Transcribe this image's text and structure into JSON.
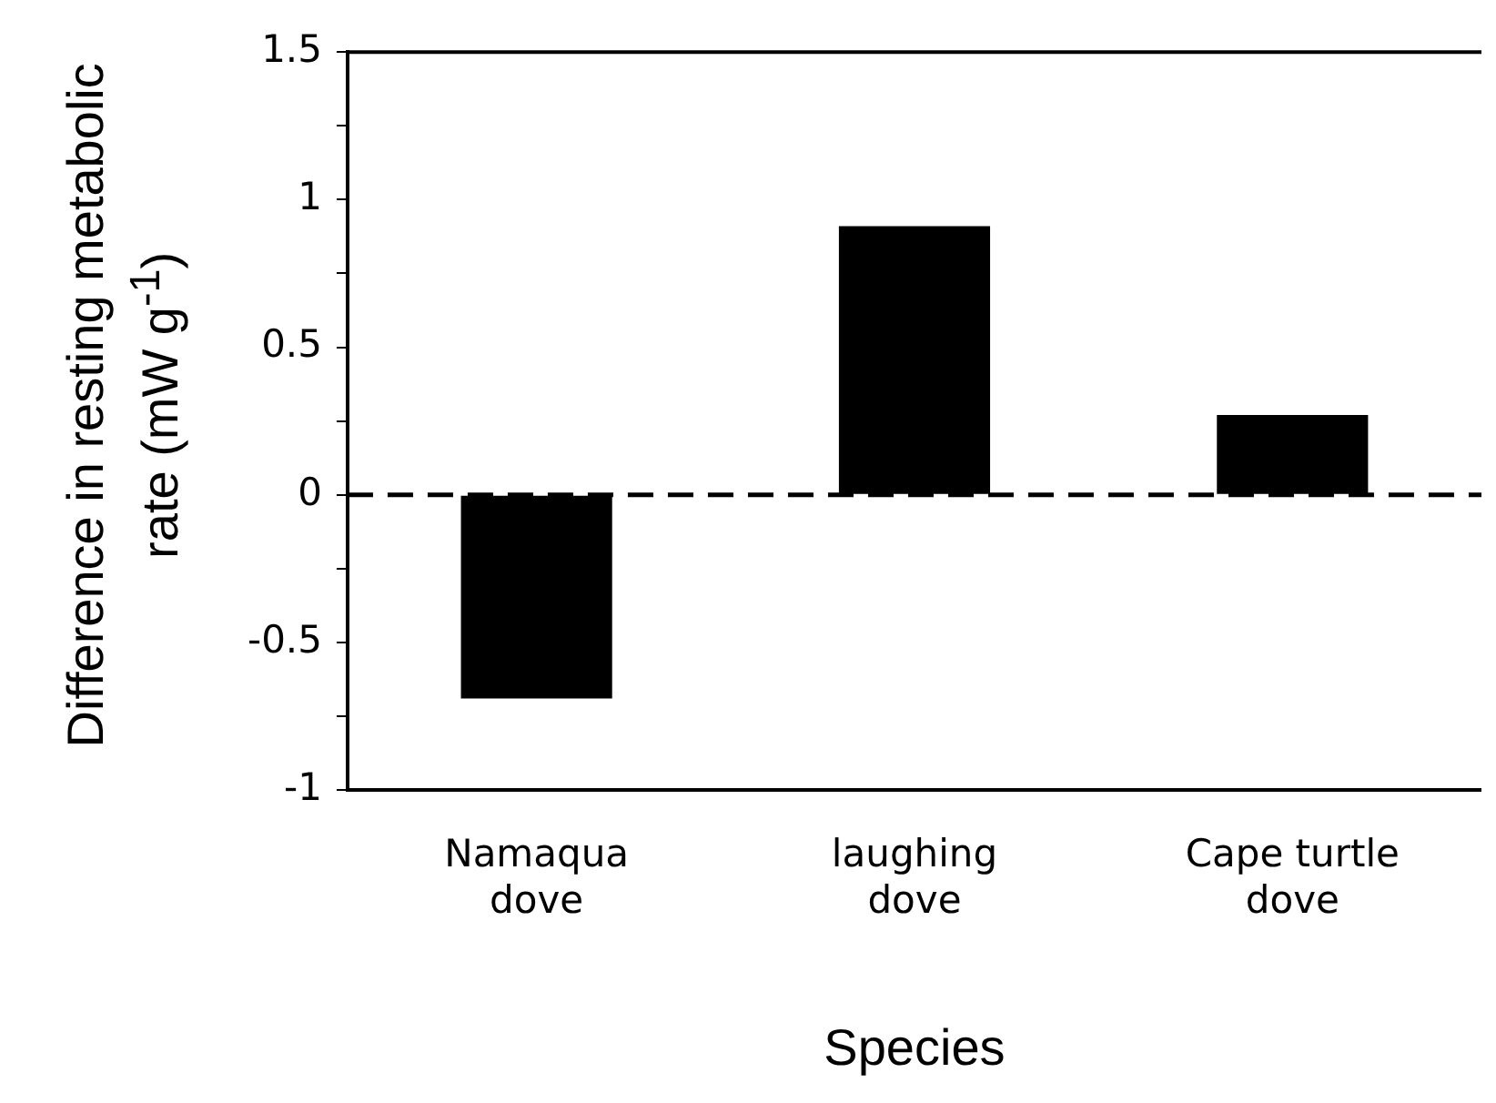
{
  "chart_data": {
    "type": "bar",
    "categories": [
      "Namaqua dove",
      "laughing dove",
      "Cape turtle dove"
    ],
    "series": [
      {
        "color": "#000000",
        "values": [
          -0.69,
          0.91,
          0.27
        ]
      }
    ],
    "xlabel": "Species",
    "ylabel": "Difference in resting metabolic rate (mW g$^{-1}$)",
    "ylim": [
      -1,
      1.5
    ],
    "yticks": [
      -1,
      {
        "value": -0.75,
        "label": null
      },
      -0.5,
      {
        "value": -0.25,
        "label": null
      },
      0,
      {
        "value": 0.25,
        "label": null
      },
      0.5,
      {
        "value": 0.75,
        "label": null
      },
      1,
      {
        "value": 1.25,
        "label": null
      },
      1.5
    ],
    "grid": false,
    "legend": false,
    "ref_lines": [
      {
        "axis": "y",
        "value": 0,
        "color": "#000000",
        "line_style": "dashed"
      }
    ]
  }
}
